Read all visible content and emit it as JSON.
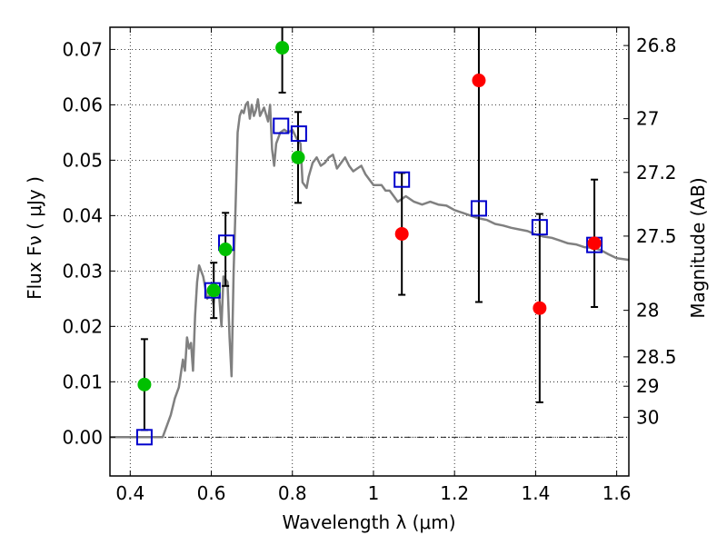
{
  "chart_data": {
    "type": "scatter",
    "xlabel": "Wavelength  λ (μm)",
    "ylabel": "Flux  Fν  ( μJy )",
    "ylabel_right": "Magnitude (AB)",
    "xlim": [
      0.35,
      1.63
    ],
    "ylim": [
      -0.007,
      0.074
    ],
    "grid": true,
    "x_ticks": [
      0.4,
      0.6,
      0.8,
      1.0,
      1.2,
      1.4,
      1.6
    ],
    "x_tick_labels": [
      "0.4",
      "0.6",
      "0.8",
      "1",
      "1.2",
      "1.4",
      "1.6"
    ],
    "y_ticks": [
      0.0,
      0.01,
      0.02,
      0.03,
      0.04,
      0.05,
      0.06,
      0.07
    ],
    "y_tick_labels": [
      "0.00",
      "0.01",
      "0.02",
      "0.03",
      "0.04",
      "0.05",
      "0.06",
      "0.07"
    ],
    "right_ticks": [
      {
        "flux": 0.0707,
        "label": "26.8"
      },
      {
        "flux": 0.0575,
        "label": "27"
      },
      {
        "flux": 0.0478,
        "label": "27.2"
      },
      {
        "flux": 0.0363,
        "label": "27.5"
      },
      {
        "flux": 0.0229,
        "label": "28"
      },
      {
        "flux": 0.0145,
        "label": "28.5"
      },
      {
        "flux": 0.0092,
        "label": "29"
      },
      {
        "flux": 0.0036,
        "label": "30"
      }
    ],
    "series": [
      {
        "marker": "circle",
        "color": "#00c000",
        "points": [
          {
            "x": 0.435,
            "y": 0.0095,
            "err": 0.0082
          },
          {
            "x": 0.606,
            "y": 0.0265,
            "err": 0.005
          },
          {
            "x": 0.635,
            "y": 0.0339,
            "err": 0.0066
          },
          {
            "x": 0.775,
            "y": 0.0703,
            "err": 0.0081
          },
          {
            "x": 0.814,
            "y": 0.0505,
            "err": 0.0082
          }
        ]
      },
      {
        "marker": "circle",
        "color": "#ff0000",
        "points": [
          {
            "x": 1.07,
            "y": 0.0367,
            "err": 0.011
          },
          {
            "x": 1.26,
            "y": 0.0644,
            "err": 0.04
          },
          {
            "x": 1.41,
            "y": 0.0233,
            "err": 0.017
          },
          {
            "x": 1.545,
            "y": 0.035,
            "err": 0.0115
          }
        ]
      },
      {
        "marker": "square",
        "color": "#0000cc",
        "points": [
          {
            "x": 0.435,
            "y": 0.0
          },
          {
            "x": 0.603,
            "y": 0.0265
          },
          {
            "x": 0.637,
            "y": 0.0351
          },
          {
            "x": 0.772,
            "y": 0.0562
          },
          {
            "x": 0.816,
            "y": 0.0548
          },
          {
            "x": 1.07,
            "y": 0.0465
          },
          {
            "x": 1.26,
            "y": 0.0413
          },
          {
            "x": 1.41,
            "y": 0.0379
          },
          {
            "x": 1.545,
            "y": 0.0347
          }
        ]
      },
      {
        "marker": "line",
        "color": "#808080",
        "points": [
          [
            0.35,
            0.0
          ],
          [
            0.48,
            0.0
          ],
          [
            0.49,
            0.002
          ],
          [
            0.5,
            0.004
          ],
          [
            0.51,
            0.007
          ],
          [
            0.52,
            0.009
          ],
          [
            0.53,
            0.014
          ],
          [
            0.535,
            0.012
          ],
          [
            0.54,
            0.018
          ],
          [
            0.545,
            0.016
          ],
          [
            0.55,
            0.017
          ],
          [
            0.555,
            0.012
          ],
          [
            0.56,
            0.022
          ],
          [
            0.565,
            0.028
          ],
          [
            0.57,
            0.031
          ],
          [
            0.58,
            0.029
          ],
          [
            0.59,
            0.025
          ],
          [
            0.6,
            0.026
          ],
          [
            0.605,
            0.024
          ],
          [
            0.61,
            0.027
          ],
          [
            0.62,
            0.025
          ],
          [
            0.625,
            0.02
          ],
          [
            0.63,
            0.029
          ],
          [
            0.64,
            0.028
          ],
          [
            0.645,
            0.018
          ],
          [
            0.65,
            0.011
          ],
          [
            0.655,
            0.03
          ],
          [
            0.66,
            0.042
          ],
          [
            0.665,
            0.055
          ],
          [
            0.67,
            0.058
          ],
          [
            0.675,
            0.059
          ],
          [
            0.68,
            0.0585
          ],
          [
            0.685,
            0.06
          ],
          [
            0.69,
            0.0605
          ],
          [
            0.695,
            0.0575
          ],
          [
            0.7,
            0.06
          ],
          [
            0.705,
            0.058
          ],
          [
            0.71,
            0.059
          ],
          [
            0.715,
            0.061
          ],
          [
            0.72,
            0.058
          ],
          [
            0.73,
            0.0595
          ],
          [
            0.74,
            0.057
          ],
          [
            0.745,
            0.06
          ],
          [
            0.75,
            0.052
          ],
          [
            0.755,
            0.049
          ],
          [
            0.76,
            0.053
          ],
          [
            0.77,
            0.055
          ],
          [
            0.78,
            0.0555
          ],
          [
            0.79,
            0.055
          ],
          [
            0.8,
            0.0555
          ],
          [
            0.81,
            0.054
          ],
          [
            0.82,
            0.053
          ],
          [
            0.825,
            0.046
          ],
          [
            0.83,
            0.0455
          ],
          [
            0.835,
            0.045
          ],
          [
            0.84,
            0.047
          ],
          [
            0.85,
            0.0495
          ],
          [
            0.86,
            0.0505
          ],
          [
            0.87,
            0.049
          ],
          [
            0.88,
            0.0495
          ],
          [
            0.89,
            0.0505
          ],
          [
            0.9,
            0.051
          ],
          [
            0.91,
            0.0485
          ],
          [
            0.92,
            0.0495
          ],
          [
            0.93,
            0.0505
          ],
          [
            0.94,
            0.049
          ],
          [
            0.95,
            0.048
          ],
          [
            0.96,
            0.0485
          ],
          [
            0.97,
            0.049
          ],
          [
            0.98,
            0.0475
          ],
          [
            0.99,
            0.0465
          ],
          [
            1.0,
            0.0455
          ],
          [
            1.02,
            0.0455
          ],
          [
            1.03,
            0.0445
          ],
          [
            1.04,
            0.0445
          ],
          [
            1.05,
            0.0435
          ],
          [
            1.06,
            0.0425
          ],
          [
            1.08,
            0.0435
          ],
          [
            1.1,
            0.0425
          ],
          [
            1.12,
            0.042
          ],
          [
            1.14,
            0.0425
          ],
          [
            1.16,
            0.042
          ],
          [
            1.18,
            0.0418
          ],
          [
            1.2,
            0.041
          ],
          [
            1.22,
            0.0405
          ],
          [
            1.24,
            0.04
          ],
          [
            1.26,
            0.0395
          ],
          [
            1.28,
            0.0392
          ],
          [
            1.3,
            0.0385
          ],
          [
            1.32,
            0.0382
          ],
          [
            1.34,
            0.0378
          ],
          [
            1.36,
            0.0375
          ],
          [
            1.38,
            0.0372
          ],
          [
            1.4,
            0.0366
          ],
          [
            1.42,
            0.0362
          ],
          [
            1.44,
            0.036
          ],
          [
            1.46,
            0.0355
          ],
          [
            1.48,
            0.035
          ],
          [
            1.5,
            0.0348
          ],
          [
            1.52,
            0.0343
          ],
          [
            1.54,
            0.0342
          ],
          [
            1.56,
            0.0338
          ],
          [
            1.58,
            0.033
          ],
          [
            1.6,
            0.0323
          ],
          [
            1.63,
            0.032
          ]
        ]
      }
    ]
  }
}
